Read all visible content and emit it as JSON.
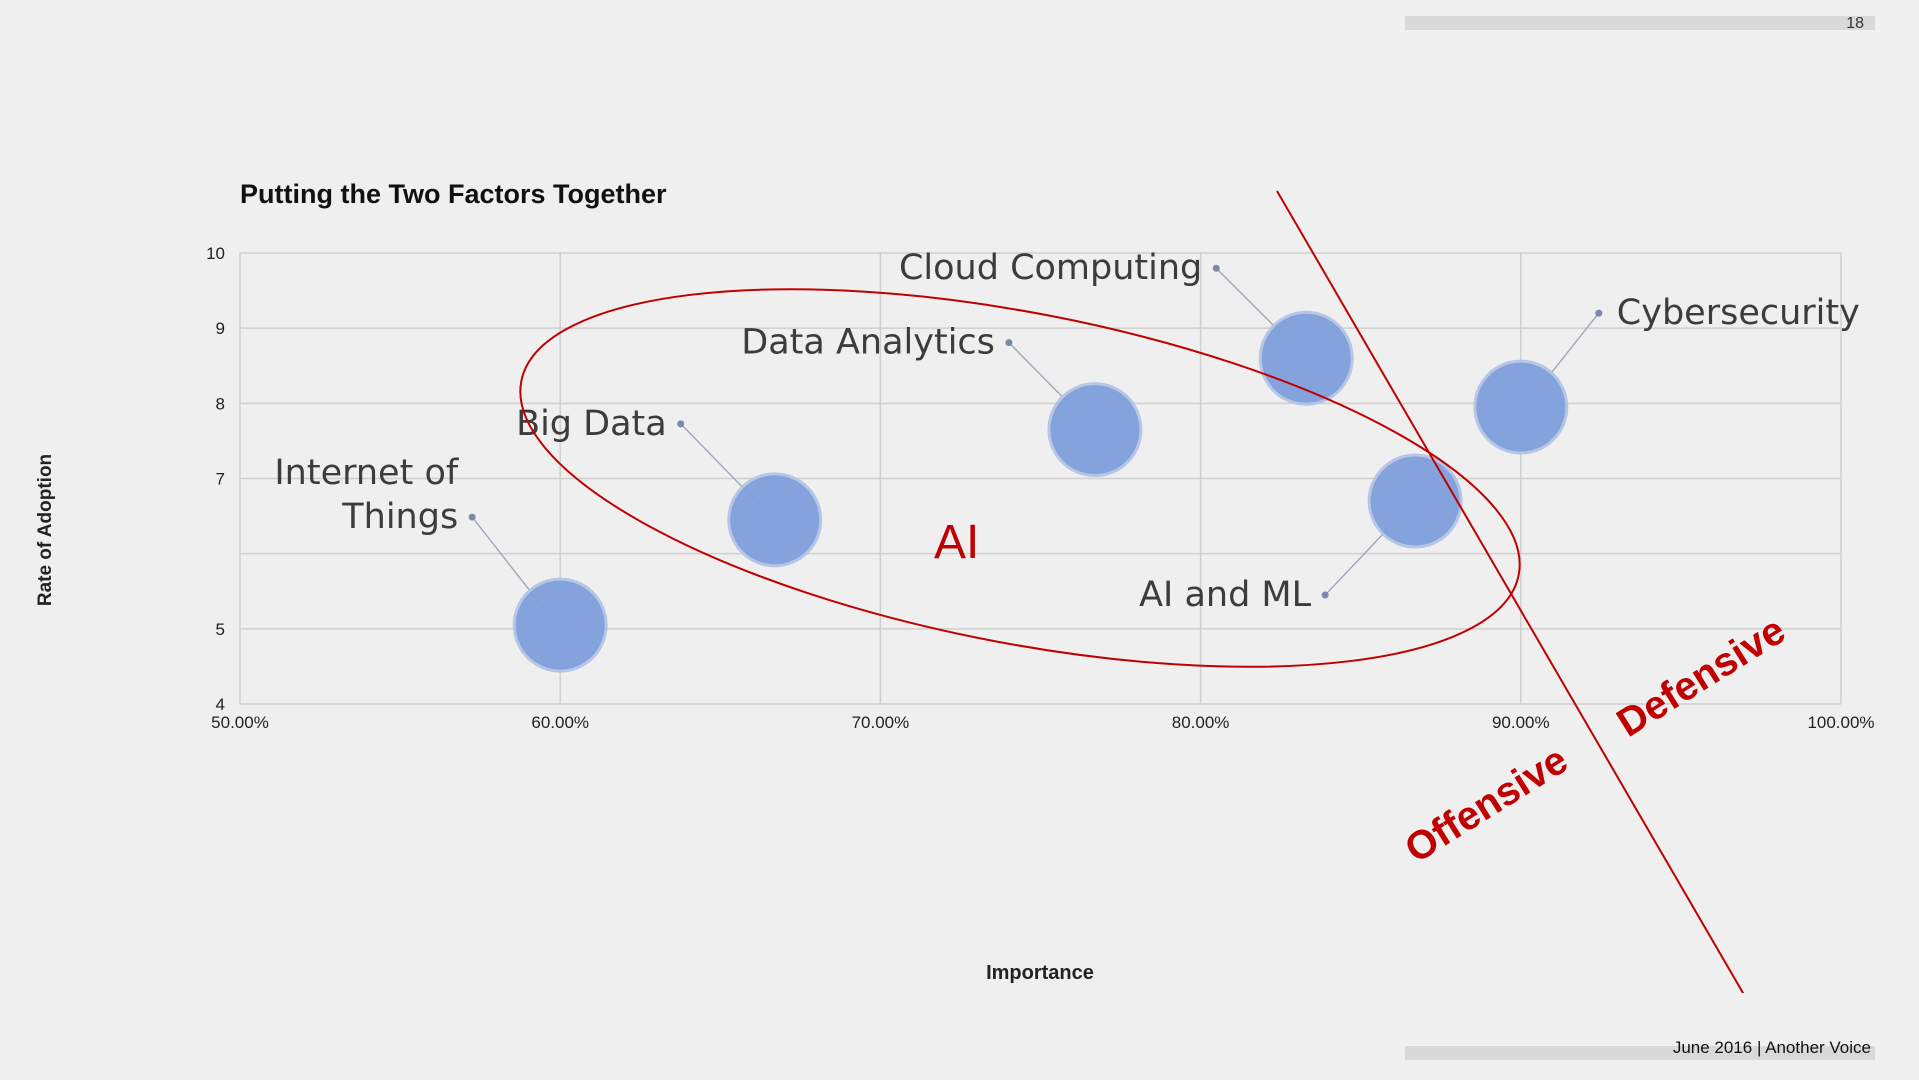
{
  "slide": {
    "number": "18",
    "footer": "June 2016  |  Another Voice"
  },
  "chart_data": {
    "type": "scatter",
    "title": "Putting the Two Factors Together",
    "xlabel": "Importance",
    "ylabel": "Rate of Adoption",
    "xlim": [
      0.5,
      1.0
    ],
    "ylim": [
      4,
      10
    ],
    "x_ticks": [
      "50.00%",
      "60.00%",
      "70.00%",
      "80.00%",
      "90.00%",
      "100.00%"
    ],
    "x_tick_values": [
      0.5,
      0.6,
      0.7,
      0.8,
      0.9,
      1.0
    ],
    "y_ticks": [
      "10",
      "9",
      "8",
      "7",
      "5",
      "4"
    ],
    "y_tick_values": [
      10,
      9,
      8,
      7,
      5,
      4
    ],
    "grid": true,
    "marker_color": "#7f9fdc",
    "points": [
      {
        "label": "Internet of Things",
        "label_lines": [
          "Internet of",
          "Things"
        ],
        "x": 0.6,
        "y": 5.05
      },
      {
        "label": "Big Data",
        "label_lines": [
          "Big Data"
        ],
        "x": 0.667,
        "y": 6.45
      },
      {
        "label": "Data Analytics",
        "label_lines": [
          "Data Analytics"
        ],
        "x": 0.767,
        "y": 7.65
      },
      {
        "label": "Cloud Computing",
        "label_lines": [
          "Cloud Computing"
        ],
        "x": 0.833,
        "y": 8.6
      },
      {
        "label": "AI and ML",
        "label_lines": [
          "AI and ML"
        ],
        "x": 0.867,
        "y": 6.7
      },
      {
        "label": "Cybersecurity",
        "label_lines": [
          "Cybersecurity"
        ],
        "x": 0.9,
        "y": 7.95
      }
    ],
    "annotations": {
      "group_label": "AI",
      "left_region": "Offensive",
      "right_region": "Defensive",
      "annotation_color": "#c00000"
    }
  }
}
